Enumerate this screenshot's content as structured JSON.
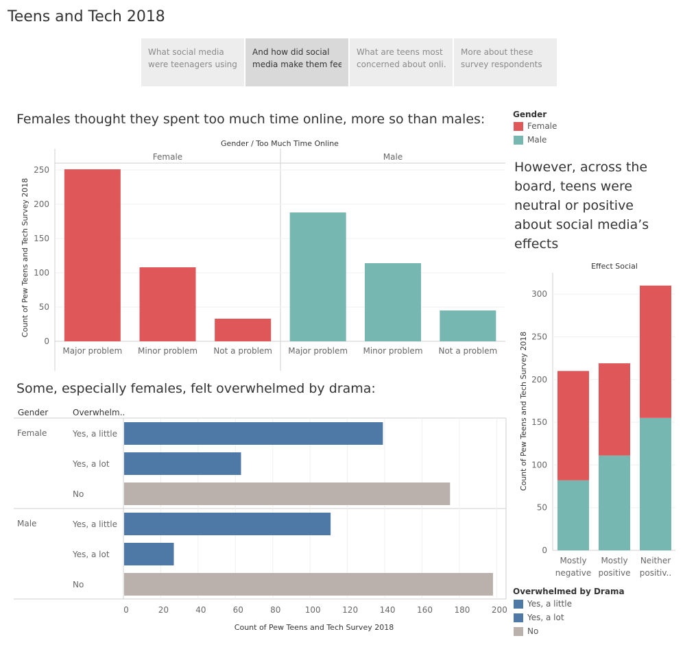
{
  "title": "Teens and Tech 2018",
  "nav_tabs": [
    {
      "line1": "What social media",
      "line2": "were teenagers using..",
      "active": false
    },
    {
      "line1": "And how did social",
      "line2": "media make them fee..",
      "active": true
    },
    {
      "line1": "What are teens most",
      "line2": "concerned about onli..",
      "active": false
    },
    {
      "line1": "More about these",
      "line2": "survey respondents",
      "active": false
    }
  ],
  "colors": {
    "female": "#e05759",
    "male": "#76b7b2",
    "blue": "#4e79a7",
    "gray": "#bab0ac"
  },
  "section1": {
    "title": "Females thought they spent too much time online, more so than males:"
  },
  "section2": {
    "title": "Some, especially females, felt overwhelmed by drama:"
  },
  "side": {
    "title": "However, across the board, teens were neutral or positive about social media’s effects"
  },
  "legend_gender": {
    "title": "Gender",
    "items": [
      "Female",
      "Male"
    ]
  },
  "legend_drama": {
    "title": "Overwhelmed by Drama",
    "items": [
      "Yes, a little",
      "Yes, a lot",
      "No"
    ]
  },
  "chart_data": [
    {
      "type": "bar",
      "title": "Gender  /  Too Much Time Online",
      "ylabel": "Count of Pew Teens and Tech Survey 2018",
      "ylim": [
        0,
        260
      ],
      "yticks": [
        0,
        50,
        100,
        150,
        200,
        250
      ],
      "panels": [
        "Female",
        "Male"
      ],
      "categories": [
        "Major problem",
        "Minor problem",
        "Not a problem"
      ],
      "series": [
        {
          "name": "Female",
          "values": [
            251,
            108,
            33
          ]
        },
        {
          "name": "Male",
          "values": [
            188,
            114,
            45
          ]
        }
      ],
      "grid": true
    },
    {
      "type": "bar",
      "orientation": "horizontal",
      "row_header": [
        "Gender",
        "Overwhelm.."
      ],
      "groups": [
        "Female",
        "Male"
      ],
      "categories": [
        "Yes, a little",
        "Yes, a lot",
        "No"
      ],
      "series": [
        {
          "name": "Female",
          "values": [
            139,
            63,
            175
          ]
        },
        {
          "name": "Male",
          "values": [
            111,
            27,
            198
          ]
        }
      ],
      "xlabel": "Count of Pew Teens and Tech Survey 2018",
      "xlim": [
        0,
        205
      ],
      "xticks": [
        0,
        20,
        40,
        60,
        80,
        100,
        120,
        140,
        160,
        180,
        200
      ],
      "grid": true
    },
    {
      "type": "bar",
      "stacked": true,
      "title": "Effect Social",
      "ylabel": "Count of Pew Teens and Tech Survey 2018",
      "ylim": [
        0,
        325
      ],
      "yticks": [
        0,
        50,
        100,
        150,
        200,
        250,
        300
      ],
      "categories": [
        [
          "Mostly",
          "negative"
        ],
        [
          "Mostly",
          "positive"
        ],
        [
          "Neither",
          "positiv.."
        ]
      ],
      "series": [
        {
          "name": "Male",
          "values": [
            82,
            111,
            155
          ]
        },
        {
          "name": "Female",
          "values": [
            128,
            108,
            155
          ]
        }
      ],
      "grid": true
    }
  ]
}
